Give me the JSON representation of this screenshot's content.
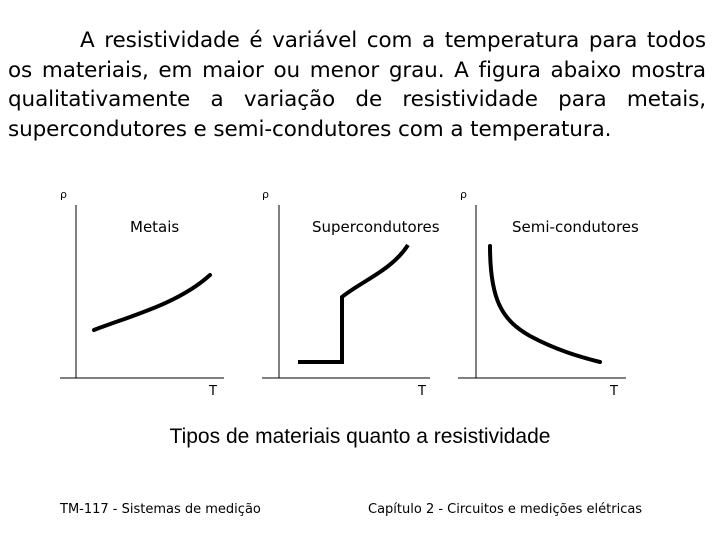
{
  "intro_text": "A resistividade é variável com a temperatura para todos os materiais, em maior ou menor grau. A figura abaixo mostra qualitativamente a variação de resistividade para metais, supercondutores e semi-condutores com a temperatura.",
  "panels": [
    {
      "y_axis_label": "ρ",
      "x_axis_label": "T",
      "title": "Metais"
    },
    {
      "y_axis_label": "ρ",
      "x_axis_label": "T",
      "title": "Supercondutores"
    },
    {
      "y_axis_label": "ρ",
      "x_axis_label": "T",
      "title": "Semi-condutores"
    }
  ],
  "caption": "Tipos de materiais quanto a resistividade",
  "footer": {
    "left": "TM-117 - Sistemas de medição",
    "right": "Capítulo 2 - Circuitos e medições elétricas"
  }
}
